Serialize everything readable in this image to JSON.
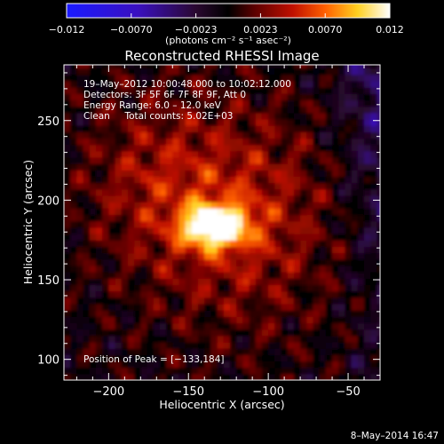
{
  "colorbar": {
    "tick_labels": [
      "−0.012",
      "−0.0070",
      "−0.0023",
      "0.0023",
      "0.0070",
      "0.012"
    ],
    "units_label": "(photons cm⁻² s⁻¹ asec⁻²)",
    "range": [
      -0.012,
      0.012
    ],
    "colors": [
      "#1a1aff",
      "#3a10c0",
      "#2a0830",
      "#000000",
      "#5a0000",
      "#c01000",
      "#ff6000",
      "#ffd020",
      "#ffffff"
    ]
  },
  "chart_data": {
    "type": "heatmap",
    "title": "Reconstructed RHESSI Image",
    "xlabel": "Heliocentric X (arcsec)",
    "ylabel": "Heliocentric Y (arcsec)",
    "xlim": [
      -228,
      -30
    ],
    "ylim": [
      87,
      285
    ],
    "x_ticks": [
      -200,
      -150,
      -100,
      -50
    ],
    "x_tick_labels": [
      "−200",
      "−150",
      "−100",
      "−50"
    ],
    "y_ticks": [
      100,
      150,
      200,
      250
    ],
    "y_tick_labels": [
      "100",
      "150",
      "200",
      "250"
    ],
    "peak": {
      "x": -133,
      "y": 184,
      "value": 0.012
    },
    "annotations": {
      "time_range": "19–May–2012 10:00:48.000 to 10:02:12.000",
      "detectors": "Detectors: 3F 5F 6F 7F 8F 9F, Att 0",
      "energy": "Energy Range: 6.0 – 12.0 keV",
      "method": "Clean     Total counts: 5.02E+03",
      "peak_label": "Position of Peak = [−133,184]"
    }
  },
  "footer": {
    "date_stamp": "8–May–2014 16:47"
  }
}
